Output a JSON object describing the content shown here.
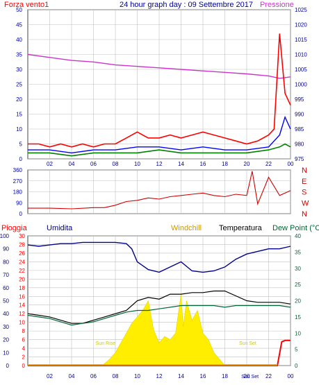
{
  "title": "24 hour graph day : 09 Settembre 2017",
  "colors": {
    "wind": "#ff0000",
    "gust": "#0000ff",
    "avg": "#008000",
    "pressure": "#cc33cc",
    "direction": "#d00000",
    "humidity": "#00008b",
    "windchill": "#cc9900",
    "temperature": "#000000",
    "dewpoint": "#006633",
    "rain": "#ff0000",
    "solar": "#ffee00",
    "axisText": "#000099",
    "grid": "#c0c0c0",
    "sunText": "#cccc00"
  },
  "chart_data": [
    {
      "type": "line",
      "name": "wind-pressure",
      "left_label": "Forza vento1",
      "right_label": "Pressione",
      "x_ticks": [
        "02",
        "04",
        "06",
        "08",
        "10",
        "12",
        "14",
        "16",
        "18",
        "20",
        "22",
        "00"
      ],
      "left_ticks": [
        "0",
        "5",
        "10",
        "15",
        "20",
        "25",
        "30",
        "35",
        "40",
        "45",
        "50"
      ],
      "right_ticks": [
        "975",
        "980",
        "985",
        "990",
        "995",
        "1000",
        "1005",
        "1010",
        "1015",
        "1020",
        "1025"
      ],
      "ylim_left": [
        0,
        50
      ],
      "ylim_right": [
        975,
        1025
      ],
      "series": [
        {
          "role": "wind",
          "x": [
            0,
            1,
            2,
            3,
            4,
            5,
            6,
            7,
            8,
            9,
            10,
            11,
            12,
            13,
            14,
            15,
            16,
            17,
            18,
            19,
            20,
            21,
            22,
            22.5,
            23,
            23.5,
            24
          ],
          "y": [
            5,
            5,
            4,
            5,
            4,
            5,
            4,
            5,
            5,
            7,
            9,
            7,
            7,
            8,
            7,
            8,
            9,
            8,
            7,
            6,
            5,
            6,
            8,
            10,
            42,
            22,
            18
          ]
        },
        {
          "role": "gust",
          "x": [
            0,
            2,
            4,
            6,
            8,
            10,
            12,
            14,
            16,
            18,
            20,
            22,
            23,
            23.5,
            24
          ],
          "y": [
            3,
            3,
            2,
            3,
            3,
            4,
            4,
            3,
            4,
            3,
            3,
            4,
            8,
            14,
            10
          ]
        },
        {
          "role": "avg",
          "x": [
            0,
            2,
            4,
            6,
            8,
            10,
            12,
            14,
            16,
            18,
            20,
            22,
            23,
            23.5,
            24
          ],
          "y": [
            2,
            2,
            1,
            2,
            2,
            2,
            3,
            2,
            2,
            2,
            2,
            3,
            4,
            5,
            4
          ]
        },
        {
          "role": "pressure",
          "x": [
            0,
            2,
            4,
            6,
            8,
            10,
            12,
            14,
            16,
            18,
            20,
            22,
            23,
            24
          ],
          "y": [
            1010,
            1009,
            1008,
            1007.5,
            1006.5,
            1006,
            1005.5,
            1005,
            1004.5,
            1004,
            1003.5,
            1002.8,
            1002,
            1002.5
          ]
        }
      ]
    },
    {
      "type": "line",
      "name": "wind-direction",
      "left_ticks": [
        "0",
        "90",
        "180",
        "270",
        "360"
      ],
      "right_labels": [
        "N",
        "W",
        "S",
        "E",
        "N"
      ],
      "ylim": [
        0,
        360
      ],
      "series": [
        {
          "role": "direction",
          "x": [
            0,
            2,
            4,
            6,
            7,
            8,
            9,
            10,
            11,
            12,
            13,
            14,
            15,
            16,
            17,
            18,
            19,
            20,
            20.5,
            21,
            22,
            23,
            24
          ],
          "y": [
            45,
            45,
            40,
            50,
            50,
            70,
            100,
            110,
            130,
            120,
            140,
            150,
            160,
            170,
            150,
            140,
            160,
            150,
            350,
            80,
            300,
            150,
            190
          ]
        }
      ]
    },
    {
      "type": "line",
      "name": "rain-humidity-temperature",
      "labels": {
        "pioggia": "Pioggia",
        "umidita": "Umidita",
        "windchill": "Windchill",
        "temperatura": "Temperatura",
        "dewpoint": "Dew Point (°C"
      },
      "annotations": {
        "sunrise": "Sun Rise",
        "sunset": "Sun Set",
        "now": "Sun Set"
      },
      "x_ticks": [
        "02",
        "04",
        "06",
        "08",
        "10",
        "12",
        "14",
        "16",
        "18",
        "20",
        "22",
        "00"
      ],
      "humidity_ticks": [
        "0",
        "10",
        "20",
        "30",
        "40",
        "50",
        "60",
        "70",
        "80",
        "90",
        "100"
      ],
      "rain_ticks": [
        "0",
        "2",
        "4",
        "6",
        "8",
        "10",
        "12",
        "14",
        "16",
        "18",
        "20",
        "22",
        "24",
        "26",
        "28",
        "30"
      ],
      "temp_ticks": [
        "0",
        "5",
        "10",
        "15",
        "20",
        "25",
        "30",
        "35",
        "40"
      ],
      "ylim_humidity": [
        0,
        100
      ],
      "ylim_rain": [
        0,
        30
      ],
      "ylim_temp": [
        0,
        40
      ],
      "series": [
        {
          "role": "humidity",
          "x": [
            0,
            1,
            2,
            3,
            4,
            5,
            6,
            7,
            8,
            9,
            9.5,
            10,
            11,
            12,
            13,
            14,
            15,
            16,
            17,
            18,
            19,
            20,
            21,
            22,
            23,
            24
          ],
          "y": [
            93,
            92,
            93,
            94,
            94,
            95,
            95,
            95,
            95,
            94,
            90,
            80,
            74,
            72,
            76,
            80,
            73,
            72,
            73,
            76,
            82,
            86,
            88,
            90,
            90,
            92
          ]
        },
        {
          "role": "temperature",
          "x": [
            0,
            1,
            2,
            3,
            4,
            5,
            6,
            7,
            8,
            9,
            10,
            11,
            12,
            13,
            14,
            15,
            16,
            17,
            18,
            19,
            20,
            21,
            22,
            23,
            24
          ],
          "y": [
            16,
            15.5,
            15,
            14,
            13,
            13,
            14,
            15,
            16,
            17,
            20,
            21,
            20.5,
            22,
            22,
            22.5,
            22.5,
            23,
            23,
            21.5,
            20,
            19.5,
            19.5,
            19.5,
            19
          ]
        },
        {
          "role": "dewpoint",
          "x": [
            0,
            1,
            2,
            3,
            4,
            5,
            6,
            7,
            8,
            9,
            10,
            11,
            12,
            13,
            14,
            15,
            16,
            17,
            18,
            19,
            20,
            21,
            22,
            23,
            24
          ],
          "y": [
            15.5,
            15,
            14.5,
            13.5,
            12.5,
            13,
            13.5,
            14.5,
            15.5,
            16.5,
            17,
            17,
            17.5,
            18,
            18.5,
            18.5,
            18.5,
            18.5,
            18,
            18.5,
            18.5,
            18.5,
            18.5,
            18.5,
            18
          ]
        },
        {
          "role": "rain",
          "x": [
            0,
            22.8,
            23.2,
            23.5,
            24
          ],
          "y": [
            0,
            0,
            5.5,
            5.8,
            5.8
          ]
        },
        {
          "role": "solar_temp_scale",
          "x": [
            6.8,
            7.5,
            8,
            8.5,
            9,
            9.5,
            10,
            10.5,
            11,
            11.5,
            12,
            12.5,
            13,
            13.5,
            14,
            14.2,
            14.5,
            15,
            15.5,
            16,
            16.5,
            17,
            17.5,
            18
          ],
          "y": [
            0,
            2,
            4,
            7,
            10,
            13,
            15,
            17,
            20,
            11,
            7,
            9,
            8,
            10,
            22,
            12,
            20,
            14,
            17,
            10,
            8,
            4,
            2,
            0
          ]
        }
      ]
    }
  ]
}
